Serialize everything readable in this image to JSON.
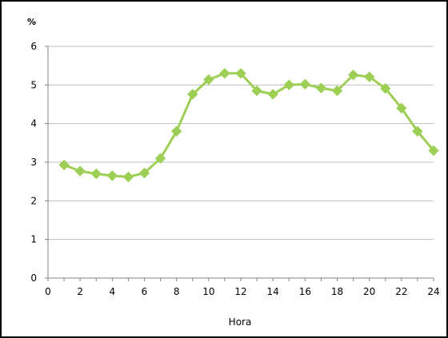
{
  "chart_data": {
    "type": "line",
    "title": "",
    "xlabel": "Hora",
    "ylabel": "%",
    "xlim": [
      0,
      24
    ],
    "ylim": [
      0,
      6
    ],
    "x_ticks": [
      0,
      2,
      4,
      6,
      8,
      10,
      12,
      14,
      16,
      18,
      20,
      22,
      24
    ],
    "y_ticks": [
      0,
      1,
      2,
      3,
      4,
      5,
      6
    ],
    "grid": "horizontal",
    "legend": "none",
    "series": [
      {
        "color": "#9dcf55",
        "marker": "diamond",
        "x": [
          1,
          2,
          3,
          4,
          5,
          6,
          7,
          8,
          9,
          10,
          11,
          12,
          13,
          14,
          15,
          16,
          17,
          18,
          19,
          20,
          21,
          22,
          23,
          24
        ],
        "values": [
          2.93,
          2.77,
          2.7,
          2.65,
          2.62,
          2.72,
          3.1,
          3.8,
          4.76,
          5.14,
          5.3,
          5.3,
          4.85,
          4.76,
          5.0,
          5.02,
          4.92,
          4.85,
          5.26,
          5.21,
          4.91,
          4.4,
          3.8,
          3.3
        ]
      }
    ]
  }
}
